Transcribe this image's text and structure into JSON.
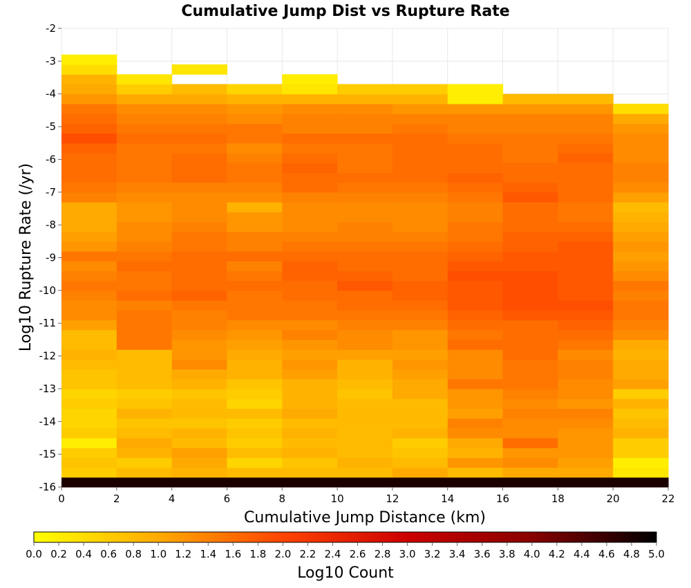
{
  "chart_data": {
    "type": "heatmap",
    "title": "Cumulative Jump Dist vs Rupture Rate",
    "xlabel": "Cumulative Jump Distance (km)",
    "ylabel": "Log10 Rupture Rate (/yr)",
    "xlim": [
      0,
      22
    ],
    "ylim": [
      -16,
      -2
    ],
    "xticks": [
      "0",
      "2",
      "4",
      "6",
      "8",
      "10",
      "12",
      "14",
      "16",
      "18",
      "20",
      "22"
    ],
    "yticks": [
      "-2",
      "-3",
      "-4",
      "-5",
      "-6",
      "-7",
      "-8",
      "-9",
      "-10",
      "-11",
      "-12",
      "-13",
      "-14",
      "-15",
      "-16"
    ],
    "x_bins_start": [
      0,
      2,
      4,
      6,
      8,
      10,
      12,
      14,
      16,
      18,
      20
    ],
    "x_bin_width": 2,
    "y_bins_start": [
      -16.0,
      -15.7,
      -15.4,
      -15.1,
      -14.8,
      -14.5,
      -14.2,
      -13.9,
      -13.6,
      -13.3,
      -13.0,
      -12.7,
      -12.4,
      -12.1,
      -11.8,
      -11.5,
      -11.2,
      -10.9,
      -10.6,
      -10.3,
      -10.0,
      -9.7,
      -9.4,
      -9.1,
      -8.8,
      -8.5,
      -8.2,
      -7.9,
      -7.6,
      -7.3,
      -7.0,
      -6.7,
      -6.4,
      -6.1,
      -5.8,
      -5.5,
      -5.2,
      -4.9,
      -4.6,
      -4.3,
      -4.0,
      -3.7,
      -3.4,
      -3.1
    ],
    "y_bin_height": 0.3,
    "z_note_row_order": "rows bottom (-16) to top (-3.1)",
    "z": [
      [
        4.8,
        4.8,
        4.8,
        4.8,
        4.8,
        4.8,
        4.8,
        4.8,
        4.8,
        4.8,
        4.8
      ],
      [
        0.6,
        0.8,
        0.9,
        0.8,
        0.8,
        0.8,
        1.0,
        0.8,
        1.0,
        1.0,
        0.3
      ],
      [
        0.7,
        0.6,
        1.0,
        0.5,
        0.7,
        0.9,
        0.8,
        1.2,
        1.3,
        1.1,
        0.2
      ],
      [
        0.6,
        0.9,
        1.1,
        0.8,
        0.9,
        0.8,
        0.7,
        0.9,
        1.2,
        1.2,
        0.6
      ],
      [
        0.2,
        1.0,
        0.8,
        0.6,
        0.8,
        0.8,
        0.6,
        1.0,
        1.6,
        1.2,
        0.6
      ],
      [
        0.6,
        0.8,
        0.9,
        0.7,
        0.9,
        0.8,
        0.9,
        1.3,
        1.3,
        1.2,
        0.9
      ],
      [
        0.5,
        0.7,
        0.7,
        0.6,
        0.8,
        0.8,
        0.8,
        1.4,
        1.3,
        1.3,
        0.8
      ],
      [
        0.5,
        0.9,
        0.8,
        0.8,
        1.0,
        0.8,
        0.8,
        1.1,
        1.4,
        1.4,
        0.7
      ],
      [
        0.6,
        0.7,
        0.8,
        0.5,
        0.9,
        0.8,
        0.8,
        1.2,
        1.3,
        1.2,
        0.9
      ],
      [
        0.5,
        0.6,
        0.7,
        0.6,
        0.9,
        0.7,
        1.0,
        1.2,
        1.4,
        1.3,
        0.6
      ],
      [
        0.7,
        0.8,
        0.9,
        0.7,
        0.9,
        0.8,
        1.0,
        1.5,
        1.5,
        1.3,
        1.1
      ],
      [
        0.7,
        0.8,
        1.0,
        0.9,
        1.1,
        0.9,
        1.1,
        1.3,
        1.5,
        1.4,
        1.0
      ],
      [
        0.8,
        0.8,
        1.3,
        0.9,
        1.2,
        0.9,
        1.2,
        1.3,
        1.5,
        1.4,
        1.0
      ],
      [
        0.9,
        0.8,
        1.2,
        1.0,
        1.1,
        1.1,
        1.1,
        1.3,
        1.6,
        1.3,
        0.9
      ],
      [
        0.8,
        1.5,
        1.2,
        1.1,
        1.2,
        1.3,
        1.2,
        1.6,
        1.6,
        1.5,
        1.0
      ],
      [
        0.8,
        1.5,
        1.3,
        1.2,
        1.4,
        1.3,
        1.2,
        1.5,
        1.6,
        1.6,
        1.3
      ],
      [
        1.1,
        1.5,
        1.4,
        1.3,
        1.3,
        1.4,
        1.4,
        1.6,
        1.6,
        1.7,
        1.4
      ],
      [
        1.3,
        1.5,
        1.4,
        1.5,
        1.5,
        1.5,
        1.5,
        1.7,
        1.8,
        1.8,
        1.5
      ],
      [
        1.3,
        1.4,
        1.5,
        1.5,
        1.5,
        1.6,
        1.6,
        1.8,
        1.9,
        1.9,
        1.5
      ],
      [
        1.4,
        1.6,
        1.7,
        1.5,
        1.6,
        1.6,
        1.7,
        1.8,
        1.9,
        1.8,
        1.4
      ],
      [
        1.5,
        1.5,
        1.6,
        1.6,
        1.6,
        1.8,
        1.7,
        1.8,
        1.9,
        1.8,
        1.5
      ],
      [
        1.4,
        1.5,
        1.6,
        1.5,
        1.7,
        1.7,
        1.6,
        1.9,
        1.9,
        1.8,
        1.3
      ],
      [
        1.3,
        1.6,
        1.6,
        1.4,
        1.7,
        1.6,
        1.6,
        1.8,
        1.8,
        1.8,
        1.2
      ],
      [
        1.5,
        1.5,
        1.6,
        1.6,
        1.6,
        1.6,
        1.6,
        1.7,
        1.8,
        1.8,
        1.1
      ],
      [
        1.2,
        1.4,
        1.5,
        1.4,
        1.5,
        1.5,
        1.5,
        1.6,
        1.7,
        1.8,
        1.2
      ],
      [
        1.1,
        1.3,
        1.5,
        1.4,
        1.4,
        1.4,
        1.4,
        1.5,
        1.7,
        1.7,
        1.1
      ],
      [
        1.0,
        1.3,
        1.4,
        1.2,
        1.3,
        1.4,
        1.3,
        1.5,
        1.6,
        1.6,
        1.0
      ],
      [
        1.0,
        1.2,
        1.3,
        1.2,
        1.3,
        1.3,
        1.3,
        1.4,
        1.6,
        1.5,
        0.9
      ],
      [
        1.0,
        1.2,
        1.3,
        0.9,
        1.3,
        1.3,
        1.3,
        1.4,
        1.6,
        1.5,
        0.8
      ],
      [
        1.4,
        1.3,
        1.3,
        1.3,
        1.4,
        1.4,
        1.4,
        1.5,
        1.8,
        1.6,
        1.1
      ],
      [
        1.5,
        1.4,
        1.4,
        1.4,
        1.6,
        1.5,
        1.5,
        1.6,
        1.7,
        1.6,
        1.3
      ],
      [
        1.6,
        1.5,
        1.6,
        1.5,
        1.6,
        1.6,
        1.6,
        1.7,
        1.6,
        1.6,
        1.4
      ],
      [
        1.6,
        1.5,
        1.6,
        1.5,
        1.7,
        1.5,
        1.6,
        1.6,
        1.6,
        1.6,
        1.4
      ],
      [
        1.6,
        1.5,
        1.6,
        1.4,
        1.6,
        1.5,
        1.6,
        1.6,
        1.5,
        1.7,
        1.3
      ],
      [
        1.7,
        1.5,
        1.5,
        1.3,
        1.5,
        1.5,
        1.6,
        1.6,
        1.5,
        1.6,
        1.3
      ],
      [
        1.9,
        1.6,
        1.6,
        1.5,
        1.6,
        1.6,
        1.6,
        1.5,
        1.5,
        1.5,
        1.3
      ],
      [
        1.7,
        1.5,
        1.5,
        1.5,
        1.4,
        1.4,
        1.5,
        1.4,
        1.4,
        1.4,
        1.2
      ],
      [
        1.6,
        1.4,
        1.4,
        1.3,
        1.4,
        1.4,
        1.4,
        1.4,
        1.4,
        1.4,
        1.0
      ],
      [
        1.5,
        1.3,
        1.3,
        1.2,
        1.3,
        1.3,
        1.2,
        1.2,
        1.2,
        1.2,
        0.4
      ],
      [
        1.2,
        1.0,
        1.0,
        0.9,
        0.9,
        0.9,
        0.9,
        0.2,
        0.8,
        0.8,
        null
      ],
      [
        1.0,
        0.6,
        0.8,
        0.5,
        0.3,
        0.6,
        0.6,
        0.2,
        null,
        null,
        null
      ],
      [
        0.9,
        0.3,
        null,
        null,
        0.2,
        null,
        null,
        null,
        null,
        null,
        null
      ],
      [
        0.4,
        null,
        0.3,
        null,
        null,
        null,
        null,
        null,
        null,
        null,
        null
      ],
      [
        0.2,
        null,
        null,
        null,
        null,
        null,
        null,
        null,
        null,
        null,
        null
      ]
    ],
    "colorbar": {
      "label": "Log10 Count",
      "range": [
        0,
        5
      ],
      "ticks": [
        "0.0",
        "0.2",
        "0.4",
        "0.6",
        "0.8",
        "1.0",
        "1.2",
        "1.4",
        "1.6",
        "1.8",
        "2.0",
        "2.2",
        "2.4",
        "2.6",
        "2.8",
        "3.0",
        "3.2",
        "3.4",
        "3.6",
        "3.8",
        "4.0",
        "4.2",
        "4.4",
        "4.6",
        "4.8",
        "5.0"
      ],
      "colormap": [
        "#ffff00",
        "#ffaa00",
        "#ff4400",
        "#cc0000",
        "#880000",
        "#000000"
      ],
      "placement": "bottom"
    },
    "grid": true
  }
}
